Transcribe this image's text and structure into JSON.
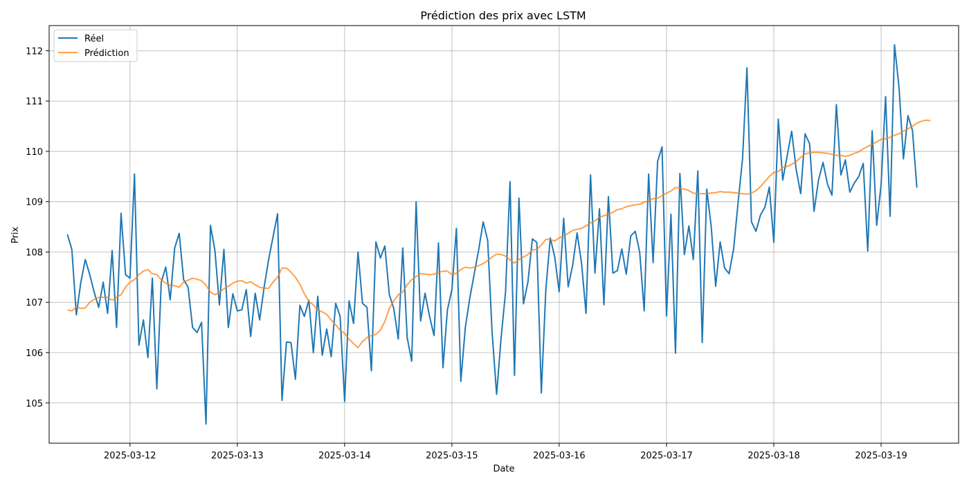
{
  "chart_data": {
    "type": "line",
    "title": "Prédiction des prix avec LSTM",
    "xlabel": "Date",
    "ylabel": "Prix",
    "x_start": "2025-03-11 10:00",
    "x_step_hours": 1,
    "xlim": [
      "2025-03-11 05:55",
      "2025-03-19 17:20"
    ],
    "ylim": [
      104.2,
      112.5
    ],
    "x_ticks": [
      "2025-03-12",
      "2025-03-13",
      "2025-03-14",
      "2025-03-15",
      "2025-03-16",
      "2025-03-17",
      "2025-03-18",
      "2025-03-19"
    ],
    "y_ticks": [
      105,
      106,
      107,
      108,
      109,
      110,
      111,
      112
    ],
    "grid": true,
    "legend": "top-left",
    "series": [
      {
        "name": "Réel",
        "color": "#1f77b4",
        "values": [
          108.35,
          108.05,
          106.75,
          107.4,
          107.85,
          107.55,
          107.2,
          106.9,
          107.4,
          106.78,
          108.03,
          106.5,
          108.77,
          107.55,
          107.48,
          109.55,
          106.15,
          106.65,
          105.9,
          107.48,
          105.28,
          107.4,
          107.7,
          107.05,
          108.08,
          108.37,
          107.45,
          107.3,
          106.5,
          106.4,
          106.6,
          104.58,
          108.53,
          108.03,
          106.95,
          108.05,
          106.5,
          107.17,
          106.83,
          106.85,
          107.25,
          106.32,
          107.18,
          106.65,
          107.3,
          107.85,
          108.3,
          108.76,
          105.05,
          106.21,
          106.2,
          105.47,
          106.94,
          106.72,
          107.04,
          106.0,
          107.12,
          105.95,
          106.47,
          105.92,
          106.98,
          106.72,
          105.03,
          107.03,
          106.58,
          108.0,
          106.98,
          106.9,
          105.64,
          108.2,
          107.88,
          108.12,
          107.15,
          106.88,
          106.27,
          108.08,
          106.3,
          105.83,
          109.0,
          106.63,
          107.18,
          106.72,
          106.34,
          108.18,
          105.7,
          106.85,
          107.25,
          108.47,
          105.43,
          106.5,
          107.08,
          107.57,
          108.05,
          108.6,
          108.23,
          106.4,
          105.17,
          106.3,
          107.2,
          109.4,
          105.55,
          109.07,
          106.97,
          107.4,
          108.26,
          108.19,
          105.2,
          107.25,
          108.28,
          107.9,
          107.21,
          108.67,
          107.31,
          107.73,
          108.38,
          107.78,
          106.78,
          109.53,
          107.58,
          108.86,
          106.95,
          109.1,
          107.58,
          107.63,
          108.06,
          107.56,
          108.32,
          108.41,
          108.0,
          106.83,
          109.55,
          107.79,
          109.8,
          110.09,
          106.73,
          108.75,
          105.99,
          109.56,
          107.95,
          108.52,
          107.85,
          109.61,
          106.2,
          109.25,
          108.5,
          107.32,
          108.2,
          107.68,
          107.57,
          108.06,
          108.97,
          109.85,
          111.66,
          108.6,
          108.41,
          108.73,
          108.89,
          109.29,
          108.19,
          110.64,
          109.43,
          109.92,
          110.4,
          109.64,
          109.16,
          110.35,
          110.15,
          108.81,
          109.43,
          109.78,
          109.35,
          109.13,
          110.93,
          109.53,
          109.83,
          109.19,
          109.37,
          109.5,
          109.76,
          108.02,
          110.41,
          108.53,
          109.34,
          111.09,
          108.71,
          112.12,
          111.27,
          109.85,
          110.71,
          110.42,
          109.28
        ]
      },
      {
        "name": "Prédiction",
        "color": "#ff7f0e",
        "values": [
          106.85,
          106.83,
          106.9,
          106.88,
          106.89,
          107.0,
          107.06,
          107.1,
          107.1,
          107.1,
          107.04,
          107.1,
          107.15,
          107.3,
          107.4,
          107.45,
          107.55,
          107.62,
          107.65,
          107.57,
          107.55,
          107.45,
          107.38,
          107.34,
          107.33,
          107.3,
          107.4,
          107.44,
          107.48,
          107.46,
          107.43,
          107.34,
          107.2,
          107.15,
          107.2,
          107.27,
          107.32,
          107.38,
          107.42,
          107.43,
          107.38,
          107.41,
          107.35,
          107.3,
          107.28,
          107.28,
          107.4,
          107.5,
          107.68,
          107.68,
          107.6,
          107.5,
          107.36,
          107.17,
          107.02,
          106.95,
          106.85,
          106.81,
          106.76,
          106.65,
          106.55,
          106.45,
          106.38,
          106.27,
          106.18,
          106.1,
          106.22,
          106.3,
          106.34,
          106.36,
          106.45,
          106.62,
          106.88,
          107.03,
          107.15,
          107.21,
          107.35,
          107.45,
          107.51,
          107.57,
          107.56,
          107.55,
          107.56,
          107.59,
          107.62,
          107.62,
          107.55,
          107.58,
          107.65,
          107.7,
          107.68,
          107.7,
          107.73,
          107.77,
          107.83,
          107.9,
          107.96,
          107.95,
          107.92,
          107.84,
          107.78,
          107.85,
          107.9,
          107.95,
          108.04,
          108.05,
          108.14,
          108.25,
          108.25,
          108.22,
          108.28,
          108.32,
          108.37,
          108.43,
          108.45,
          108.47,
          108.52,
          108.58,
          108.62,
          108.69,
          108.72,
          108.76,
          108.79,
          108.84,
          108.86,
          108.9,
          108.92,
          108.94,
          108.95,
          108.99,
          109.02,
          109.06,
          109.07,
          109.12,
          109.17,
          109.21,
          109.28,
          109.27,
          109.25,
          109.22,
          109.17,
          109.16,
          109.16,
          109.16,
          109.17,
          109.18,
          109.2,
          109.19,
          109.19,
          109.18,
          109.17,
          109.16,
          109.15,
          109.17,
          109.22,
          109.3,
          109.4,
          109.5,
          109.58,
          109.6,
          109.68,
          109.7,
          109.74,
          109.8,
          109.88,
          109.95,
          109.97,
          109.98,
          109.98,
          109.97,
          109.96,
          109.94,
          109.92,
          109.92,
          109.9,
          109.92,
          109.96,
          109.99,
          110.05,
          110.1,
          110.14,
          110.19,
          110.24,
          110.25,
          110.28,
          110.32,
          110.35,
          110.4,
          110.45,
          110.5,
          110.56,
          110.6,
          110.62,
          110.61
        ]
      }
    ]
  }
}
